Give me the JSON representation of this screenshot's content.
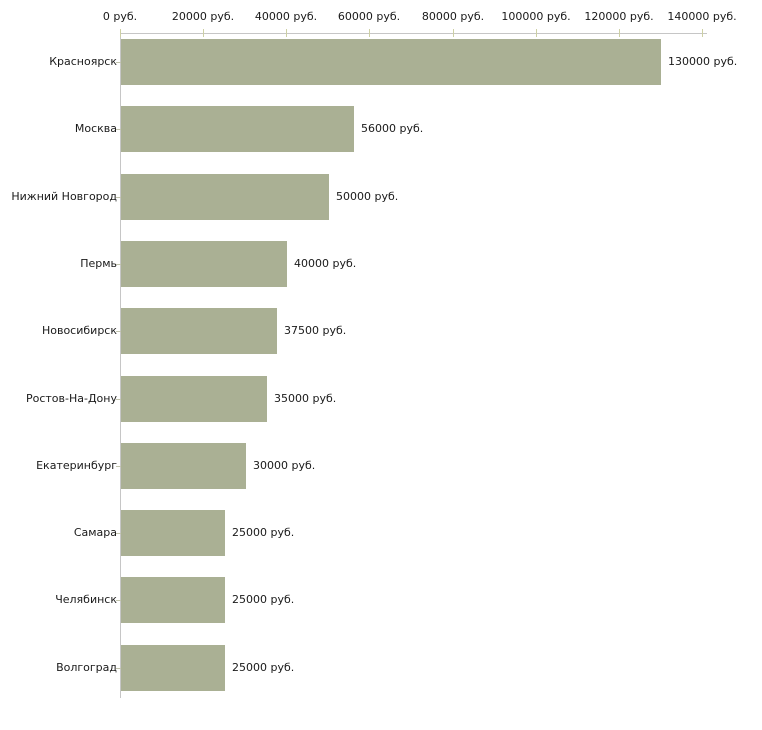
{
  "chart_data": {
    "type": "bar",
    "orientation": "horizontal",
    "title": "",
    "xlabel": "",
    "ylabel": "",
    "unit": "руб.",
    "xlim": [
      0,
      140000
    ],
    "x_ticks": [
      0,
      20000,
      40000,
      60000,
      80000,
      100000,
      120000,
      140000
    ],
    "x_tick_labels": [
      "0 руб.",
      "20000 руб.",
      "40000 руб.",
      "60000 руб.",
      "80000 руб.",
      "100000 руб.",
      "120000 руб.",
      "140000 руб."
    ],
    "grid": false,
    "legend": null,
    "bars": [
      {
        "label": "Красноярск",
        "value": 130000,
        "value_label": "130000 руб."
      },
      {
        "label": "Москва",
        "value": 56000,
        "value_label": "56000 руб."
      },
      {
        "label": "Нижний Новгород",
        "value": 50000,
        "value_label": "50000 руб."
      },
      {
        "label": "Пермь",
        "value": 40000,
        "value_label": "40000 руб."
      },
      {
        "label": "Новосибирск",
        "value": 37500,
        "value_label": "37500 руб."
      },
      {
        "label": "Ростов-На-Дону",
        "value": 35000,
        "value_label": "35000 руб."
      },
      {
        "label": "Екатеринбург",
        "value": 30000,
        "value_label": "30000 руб."
      },
      {
        "label": "Самара",
        "value": 25000,
        "value_label": "25000 руб."
      },
      {
        "label": "Челябинск",
        "value": 25000,
        "value_label": "25000 руб."
      },
      {
        "label": "Волгоград",
        "value": 25000,
        "value_label": "25000 руб."
      }
    ],
    "colors": {
      "bar_fill": "#aab094",
      "axis_line": "#c6c6c6",
      "axis_tick": "#cdd0a4",
      "category_tick": "#c2c4ae",
      "text": "#1a1a1a",
      "background": "#ffffff"
    }
  }
}
